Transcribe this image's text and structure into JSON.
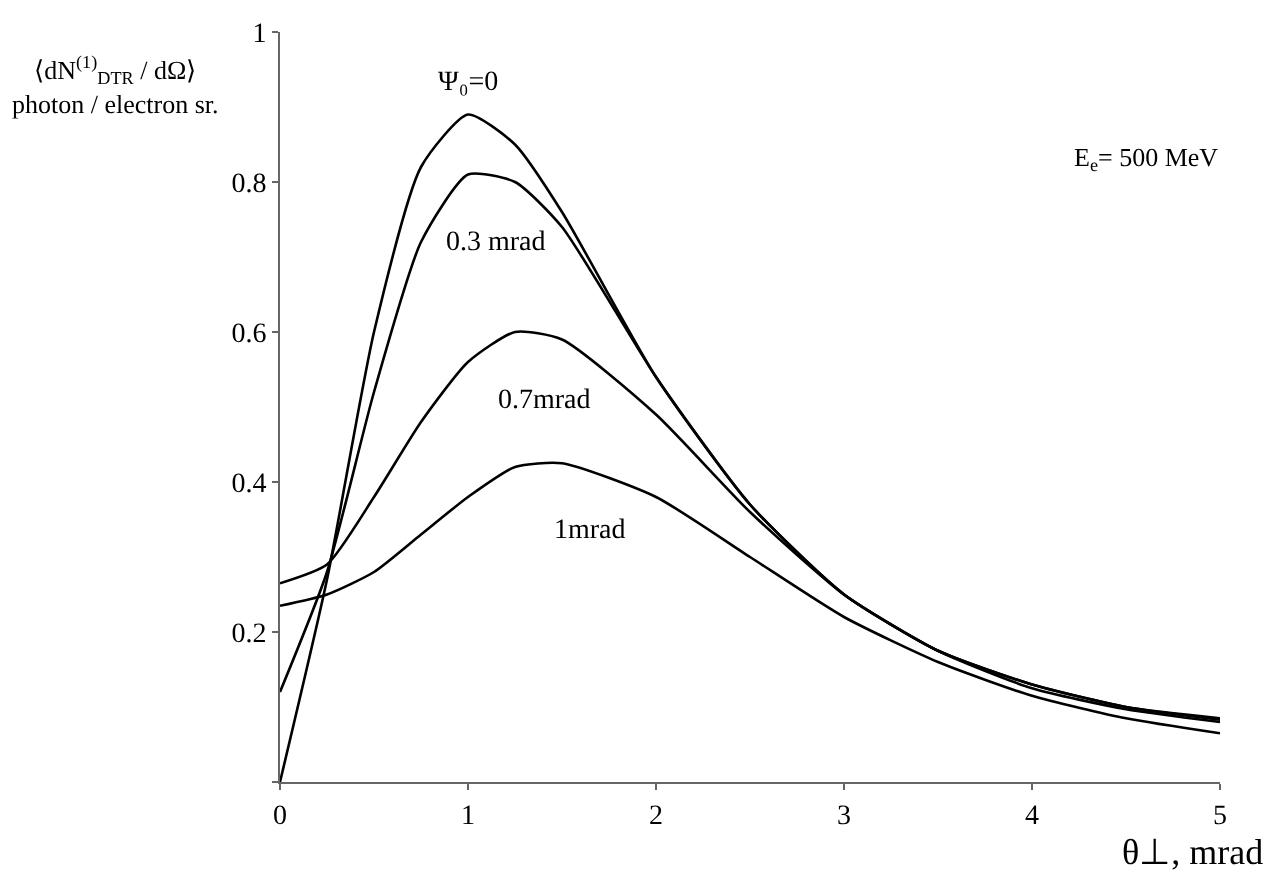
{
  "chart_data": {
    "type": "line",
    "xlabel": "θ⊥, mrad",
    "ylabel": "⟨dN$^{(1)}$$_{DTR}$ / dΩ⟩\nphoton / electron sr.",
    "x": [
      0,
      0.25,
      0.5,
      0.75,
      1,
      1.25,
      1.5,
      2,
      2.5,
      3,
      3.5,
      4,
      4.5,
      5
    ],
    "series": [
      {
        "name": "Ψ₀=0",
        "color": "#000000",
        "values": [
          0,
          0.27,
          0.6,
          0.82,
          0.89,
          0.85,
          0.76,
          0.54,
          0.37,
          0.25,
          0.175,
          0.13,
          0.1,
          0.085
        ]
      },
      {
        "name": "0.3 mrad",
        "color": "#000000",
        "values": [
          0.12,
          0.28,
          0.52,
          0.72,
          0.81,
          0.8,
          0.74,
          0.54,
          0.37,
          0.25,
          0.175,
          0.13,
          0.1,
          0.083
        ]
      },
      {
        "name": "0.7mrad",
        "color": "#000000",
        "values": [
          0.265,
          0.29,
          0.38,
          0.48,
          0.56,
          0.6,
          0.59,
          0.49,
          0.36,
          0.25,
          0.175,
          0.125,
          0.097,
          0.08
        ]
      },
      {
        "name": "1mrad",
        "color": "#000000",
        "values": [
          0.235,
          0.25,
          0.28,
          0.33,
          0.38,
          0.42,
          0.425,
          0.38,
          0.3,
          0.22,
          0.16,
          0.115,
          0.085,
          0.065
        ]
      }
    ],
    "annotations": [
      "E$_{e}$= 500 MeV"
    ],
    "xlim": [
      0,
      5
    ],
    "ylim": [
      0,
      1
    ],
    "xticks": [
      0,
      1,
      2,
      3,
      4,
      5
    ],
    "yticks": [
      {
        "value": 0,
        "label": null
      },
      0.2,
      0.4,
      0.6,
      0.8,
      1
    ],
    "legend": false,
    "marker": "none",
    "line_style": "solid"
  }
}
